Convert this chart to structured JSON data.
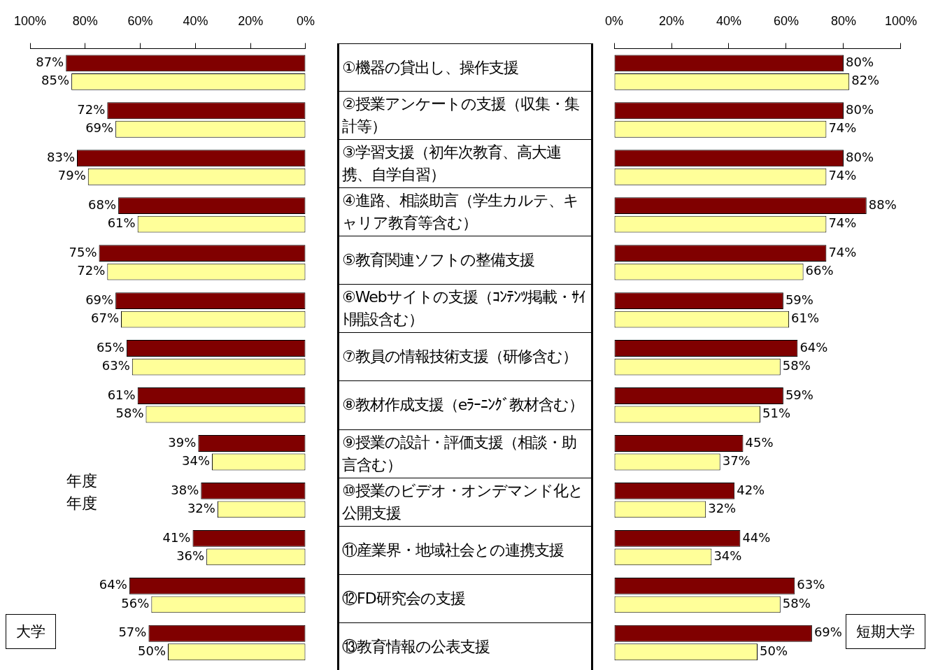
{
  "chart_data": [
    {
      "type": "bar",
      "orientation": "horizontal",
      "title": "大学",
      "annotations": [
        "年度",
        "年度"
      ],
      "categories": [
        "①機器の貸出し、操作支援",
        "②授業アンケートの支援（収集・集計等）",
        "③学習支援（初年次教育、高大連携、自学自習）",
        "④進路、相談助言（学生カルテ、キャリア教育等含む）",
        "⑤教育関連ソフトの整備支援",
        "⑥Webサイトの支援（ｺﾝﾃﾝﾂ掲載・ｻｲﾄ開設含む）",
        "⑦教員の情報技術支援（研修含む）",
        "⑧教材作成支援（eﾗｰﾆﾝｸﾞ教材含む）",
        "⑨授業の設計・評価支援（相談・助言含む）",
        "⑩授業のビデオ・オンデマンド化と公開支援",
        "⑪産業界・地域社会との連携支援",
        "⑫FD研究会の支援",
        "⑬教育情報の公表支援"
      ],
      "series": [
        {
          "color": "#800000",
          "values": [
            87,
            72,
            83,
            68,
            75,
            69,
            65,
            61,
            39,
            38,
            41,
            64,
            57
          ],
          "value_labels": [
            "87%",
            "72%",
            "83%",
            "68%",
            "75%",
            "69%",
            "65%",
            "61%",
            "39%",
            "38%",
            "41%",
            "64%",
            "57%"
          ]
        },
        {
          "color": "#ffff99",
          "values": [
            85,
            69,
            79,
            61,
            72,
            67,
            63,
            58,
            34,
            32,
            36,
            56,
            50
          ],
          "value_labels": [
            "85%",
            "69%",
            "79%",
            "61%",
            "72%",
            "67%",
            "63%",
            "58%",
            "34%",
            "32%",
            "36%",
            "56%",
            "50%"
          ]
        }
      ],
      "xlim": [
        100,
        0
      ],
      "xticks": [
        {
          "value": 100,
          "label": "100%"
        },
        {
          "value": 80,
          "label": "80%"
        },
        {
          "value": 60,
          "label": "60%"
        },
        {
          "value": 40,
          "label": "40%"
        },
        {
          "value": 20,
          "label": "20%"
        },
        {
          "value": 0,
          "label": "0%"
        }
      ],
      "grid": false,
      "legend": false
    },
    {
      "type": "bar",
      "orientation": "horizontal",
      "title": "短期大学",
      "tick_labels": "x",
      "categories": [
        "①機器の貸出し、操作支援",
        "②授業アンケートの支援（収集・集計等）",
        "③学習支援（初年次教育、高大連携、自学自習）",
        "④進路、相談助言（学生カルテ、キャリア教育等含む）",
        "⑤教育関連ソフトの整備支援",
        "⑥Webサイトの支援（ｺﾝﾃﾝﾂ掲載・ｻｲﾄ開設含む）",
        "⑦教員の情報技術支援（研修含む）",
        "⑧教材作成支援（eﾗｰﾆﾝｸﾞ教材含む）",
        "⑨授業の設計・評価支援（相談・助言含む）",
        "⑩授業のビデオ・オンデマンド化と公開支援",
        "⑪産業界・地域社会との連携支援",
        "⑫FD研究会の支援",
        "⑬教育情報の公表支援"
      ],
      "series": [
        {
          "color": "#800000",
          "values": [
            80,
            80,
            80,
            88,
            74,
            59,
            64,
            59,
            45,
            42,
            44,
            63,
            69
          ],
          "value_labels": [
            "80%",
            "80%",
            "80%",
            "88%",
            "74%",
            "59%",
            "64%",
            "59%",
            "45%",
            "42%",
            "44%",
            "63%",
            "69%"
          ]
        },
        {
          "color": "#ffff99",
          "values": [
            82,
            74,
            74,
            74,
            66,
            61,
            58,
            51,
            37,
            32,
            34,
            58,
            50
          ],
          "value_labels": [
            "82%",
            "74%",
            "74%",
            "74%",
            "66%",
            "61%",
            "58%",
            "51%",
            "37%",
            "32%",
            "34%",
            "58%",
            "50%"
          ]
        }
      ],
      "xlim": [
        0,
        100
      ],
      "xticks": [
        {
          "value": 0,
          "label": "0%"
        },
        {
          "value": 20,
          "label": "20%"
        },
        {
          "value": 40,
          "label": "40%"
        },
        {
          "value": 60,
          "label": "60%"
        },
        {
          "value": 80,
          "label": "80%"
        },
        {
          "value": 100,
          "label": "100%"
        }
      ],
      "grid": false,
      "legend": false
    }
  ]
}
